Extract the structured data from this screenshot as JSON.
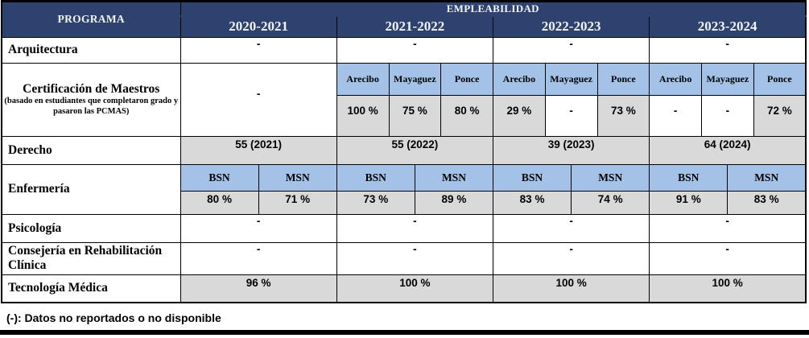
{
  "table": {
    "program_header": "PROGRAMA",
    "title": "EMPLEABILIDAD",
    "years": [
      "2020-2021",
      "2021-2022",
      "2022-2023",
      "2023-2024"
    ],
    "rows": {
      "arquitectura": {
        "label": "Arquitectura",
        "values": [
          "-",
          "-",
          "-",
          "-"
        ]
      },
      "certificacion": {
        "label": "Certificación de Maestros",
        "sublabel": "(basado en estudiantes que completaron grado y pasaron las PCMAS)",
        "first_year_value": "-",
        "campuses": [
          "Arecibo",
          "Mayaguez",
          "Ponce"
        ],
        "values_2021_2022": [
          "100 %",
          "75 %",
          "80 %"
        ],
        "values_2022_2023": [
          "29 %",
          "-",
          "73 %"
        ],
        "values_2023_2024": [
          "-",
          "-",
          "72 %"
        ]
      },
      "derecho": {
        "label": "Derecho",
        "values": [
          "55 (2021)",
          "55 (2022)",
          "39 (2023)",
          "64 (2024)"
        ]
      },
      "enfermeria": {
        "label": "Enfermería",
        "degrees": [
          "BSN",
          "MSN"
        ],
        "values": [
          "80 %",
          "71 %",
          "73 %",
          "89 %",
          "83 %",
          "74 %",
          "91 %",
          "83 %"
        ]
      },
      "psicologia": {
        "label": "Psicología",
        "values": [
          "-",
          "-",
          "-",
          "-"
        ]
      },
      "consejeria": {
        "label": "Consejería en Rehabilitación Clínica",
        "values": [
          "-",
          "-",
          "-",
          "-"
        ]
      },
      "tecnologia": {
        "label": "Tecnología Médica",
        "values": [
          "96 %",
          "100 %",
          "100 %",
          "100 %"
        ]
      }
    }
  },
  "footnote": "(-): Datos no reportados o no disponible",
  "colors": {
    "header_navy": "#2e4270",
    "subheader_blue": "#a4c2e8",
    "cell_gray": "#d9d9d9"
  }
}
